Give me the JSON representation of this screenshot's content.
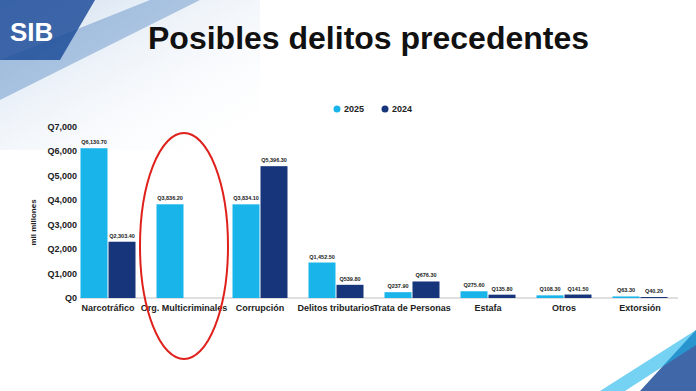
{
  "header": {
    "logo": "SIB"
  },
  "chart_data": {
    "type": "bar",
    "title": "Posibles delitos precedentes",
    "y_label": "mil millones",
    "categories": [
      "Narcotráfico",
      "Org. Multicriminales",
      "Corrupción",
      "Delitos tributarios",
      "Trata de Personas",
      "Estafa",
      "Otros",
      "Extorsión"
    ],
    "series": [
      {
        "name": "2025",
        "color": "#19b4ea",
        "values": [
          6130.7,
          3836.2,
          3834.1,
          1452.5,
          237.9,
          275.6,
          108.3,
          63.3
        ],
        "value_labels": [
          "Q6,130.70",
          "Q3,836.20",
          "Q3,834.10",
          "Q1,452.50",
          "Q237.90",
          "Q275.60",
          "Q108.30",
          "Q63.30"
        ]
      },
      {
        "name": "2024",
        "color": "#17357a",
        "values": [
          2303.4,
          null,
          5396.3,
          539.8,
          676.3,
          135.8,
          141.5,
          40.2
        ],
        "value_labels": [
          "Q2,303.40",
          null,
          "Q5,396.30",
          "Q539.80",
          "Q676.30",
          "Q135.80",
          "Q141.50",
          "Q40.20"
        ]
      }
    ],
    "ylim": [
      0,
      7000
    ],
    "yticks": [
      {
        "value": 0,
        "label": "Q0"
      },
      {
        "value": 1000,
        "label": "Q1,000"
      },
      {
        "value": 2000,
        "label": "Q2,000"
      },
      {
        "value": 3000,
        "label": "Q3,000"
      },
      {
        "value": 4000,
        "label": "Q4,000"
      },
      {
        "value": 5000,
        "label": "Q5,000"
      },
      {
        "value": 6000,
        "label": "Q6,000"
      },
      {
        "value": 7000,
        "label": "Q7,000"
      }
    ],
    "grid": false,
    "legend": "top",
    "data_labels": true
  }
}
